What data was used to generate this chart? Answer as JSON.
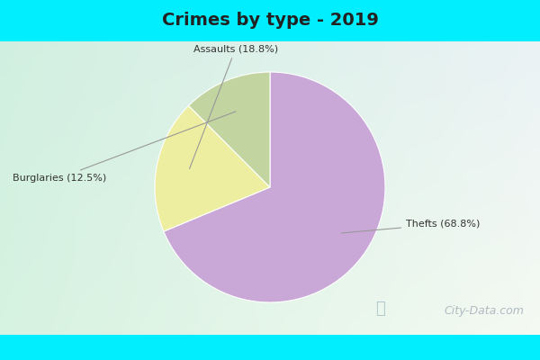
{
  "title": "Crimes by type - 2019",
  "title_fontsize": 14,
  "slices": [
    68.8,
    18.8,
    12.5
  ],
  "labels": [
    "Thefts (68.8%)",
    "Assaults (18.8%)",
    "Burglaries (12.5%)"
  ],
  "colors": [
    "#c9a8d8",
    "#eeeea0",
    "#c2d4a0"
  ],
  "start_angle": 90,
  "counterclock": false,
  "top_bar_color": "#00eeff",
  "top_bar_height": 0.115,
  "panel_bg_tl": [
    0.82,
    0.94,
    0.88
  ],
  "panel_bg_tr": [
    0.92,
    0.95,
    0.96
  ],
  "panel_bg_bl": [
    0.84,
    0.95,
    0.88
  ],
  "panel_bg_br": [
    0.96,
    0.98,
    0.95
  ],
  "watermark_text": "City-Data.com",
  "label_arrow_color": "#999999",
  "label_font_size": 8,
  "label_color": "#333333"
}
